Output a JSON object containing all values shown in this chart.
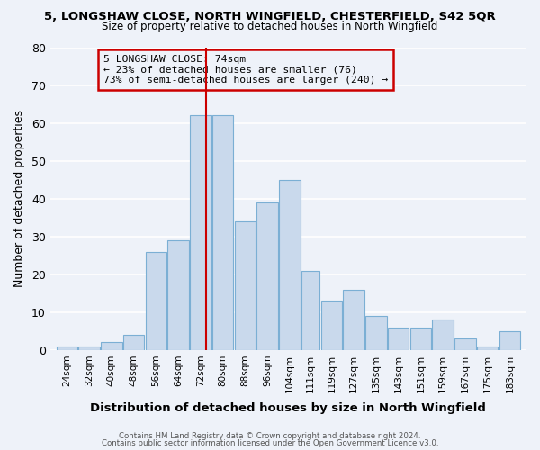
{
  "title": "5, LONGSHAW CLOSE, NORTH WINGFIELD, CHESTERFIELD, S42 5QR",
  "subtitle": "Size of property relative to detached houses in North Wingfield",
  "xlabel": "Distribution of detached houses by size in North Wingfield",
  "ylabel": "Number of detached properties",
  "bar_labels": [
    "24sqm",
    "32sqm",
    "40sqm",
    "48sqm",
    "56sqm",
    "64sqm",
    "72sqm",
    "80sqm",
    "88sqm",
    "96sqm",
    "104sqm",
    "111sqm",
    "119sqm",
    "127sqm",
    "135sqm",
    "143sqm",
    "151sqm",
    "159sqm",
    "167sqm",
    "175sqm",
    "183sqm"
  ],
  "bar_values": [
    1,
    1,
    2,
    4,
    26,
    29,
    62,
    62,
    34,
    39,
    45,
    21,
    13,
    16,
    9,
    6,
    6,
    8,
    3,
    1,
    5
  ],
  "bar_color": "#c9d9ec",
  "bar_edgecolor": "#7bafd4",
  "vline_x": 74,
  "vline_color": "#cc0000",
  "annotation_title": "5 LONGSHAW CLOSE: 74sqm",
  "annotation_line1": "← 23% of detached houses are smaller (76)",
  "annotation_line2": "73% of semi-detached houses are larger (240) →",
  "annotation_box_edgecolor": "#cc0000",
  "ylim": [
    0,
    80
  ],
  "yticks": [
    0,
    10,
    20,
    30,
    40,
    50,
    60,
    70,
    80
  ],
  "footer1": "Contains HM Land Registry data © Crown copyright and database right 2024.",
  "footer2": "Contains public sector information licensed under the Open Government Licence v3.0.",
  "bg_color": "#eef2f9",
  "grid_color": "#ffffff",
  "bin_edges": [
    20,
    28,
    36,
    44,
    52,
    60,
    68,
    76,
    84,
    92,
    100,
    108,
    115,
    123,
    131,
    139,
    147,
    155,
    163,
    171,
    179,
    187
  ]
}
